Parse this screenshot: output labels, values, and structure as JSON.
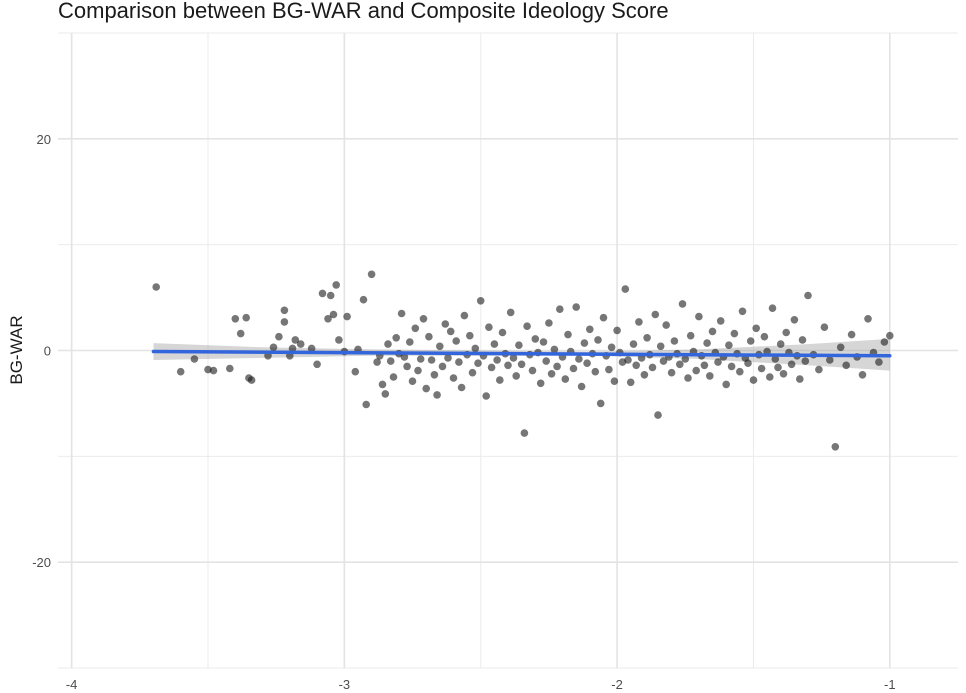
{
  "chart_data": {
    "type": "scatter",
    "title": "Comparison between BG-WAR and Composite Ideology Score",
    "xlabel": "",
    "ylabel": "BG-WAR",
    "xlim": [
      -4.05,
      -0.75
    ],
    "ylim": [
      -30,
      30
    ],
    "x_ticks": [
      -4,
      -3,
      -2,
      -1
    ],
    "x_tick_labels": [
      "-4",
      "-3",
      "-2",
      "-1"
    ],
    "y_ticks": [
      -20,
      0,
      20
    ],
    "y_tick_labels": [
      "-20",
      "0",
      "20"
    ],
    "grid": true,
    "point_color": "#1a1a1a",
    "trend_color": "#3366dd",
    "band_color": "#999999",
    "trend": {
      "x": [
        -3.7,
        -1.0
      ],
      "y": [
        -0.1,
        -0.5
      ]
    },
    "confidence_band": {
      "x": [
        -3.7,
        -3.3,
        -2.9,
        -2.5,
        -2.1,
        -1.7,
        -1.3,
        -1.0
      ],
      "upper": [
        0.7,
        0.3,
        0.1,
        0.0,
        -0.1,
        0.1,
        0.6,
        1.1
      ],
      "lower": [
        -0.9,
        -0.7,
        -0.5,
        -0.5,
        -0.5,
        -0.8,
        -1.4,
        -1.9
      ]
    },
    "points": [
      [
        -3.69,
        6.0
      ],
      [
        -3.6,
        -2.0
      ],
      [
        -3.55,
        -0.8
      ],
      [
        -3.5,
        -1.8
      ],
      [
        -3.48,
        -1.9
      ],
      [
        -3.42,
        -1.7
      ],
      [
        -3.4,
        3.0
      ],
      [
        -3.38,
        1.6
      ],
      [
        -3.36,
        3.1
      ],
      [
        -3.35,
        -2.6
      ],
      [
        -3.34,
        -2.8
      ],
      [
        -3.28,
        -0.5
      ],
      [
        -3.26,
        0.3
      ],
      [
        -3.24,
        1.3
      ],
      [
        -3.22,
        3.8
      ],
      [
        -3.22,
        2.7
      ],
      [
        -3.2,
        -0.5
      ],
      [
        -3.19,
        0.2
      ],
      [
        -3.18,
        1.0
      ],
      [
        -3.16,
        0.6
      ],
      [
        -3.12,
        0.2
      ],
      [
        -3.1,
        -1.3
      ],
      [
        -3.08,
        5.4
      ],
      [
        -3.06,
        3.0
      ],
      [
        -3.05,
        5.2
      ],
      [
        -3.04,
        3.4
      ],
      [
        -3.03,
        6.2
      ],
      [
        -3.02,
        1.0
      ],
      [
        -3.0,
        -0.1
      ],
      [
        -2.99,
        3.2
      ],
      [
        -2.96,
        -2.0
      ],
      [
        -2.95,
        0.1
      ],
      [
        -2.93,
        4.8
      ],
      [
        -2.92,
        -5.1
      ],
      [
        -2.9,
        7.2
      ],
      [
        -2.88,
        -1.1
      ],
      [
        -2.87,
        -0.5
      ],
      [
        -2.86,
        -3.2
      ],
      [
        -2.85,
        -4.1
      ],
      [
        -2.84,
        0.6
      ],
      [
        -2.83,
        -1.0
      ],
      [
        -2.82,
        -2.5
      ],
      [
        -2.81,
        1.2
      ],
      [
        -2.8,
        -0.3
      ],
      [
        -2.79,
        3.5
      ],
      [
        -2.78,
        -0.6
      ],
      [
        -2.77,
        -1.5
      ],
      [
        -2.76,
        0.8
      ],
      [
        -2.75,
        -2.9
      ],
      [
        -2.74,
        2.1
      ],
      [
        -2.73,
        -1.9
      ],
      [
        -2.72,
        -0.8
      ],
      [
        -2.71,
        3.0
      ],
      [
        -2.7,
        -3.6
      ],
      [
        -2.69,
        1.3
      ],
      [
        -2.68,
        -0.9
      ],
      [
        -2.67,
        -2.3
      ],
      [
        -2.66,
        -4.2
      ],
      [
        -2.65,
        0.4
      ],
      [
        -2.64,
        -1.5
      ],
      [
        -2.63,
        2.5
      ],
      [
        -2.62,
        -0.7
      ],
      [
        -2.61,
        1.8
      ],
      [
        -2.6,
        -2.6
      ],
      [
        -2.59,
        0.9
      ],
      [
        -2.58,
        -1.1
      ],
      [
        -2.57,
        -3.5
      ],
      [
        -2.56,
        3.3
      ],
      [
        -2.55,
        -0.4
      ],
      [
        -2.54,
        1.4
      ],
      [
        -2.53,
        -2.1
      ],
      [
        -2.52,
        0.2
      ],
      [
        -2.51,
        -1.2
      ],
      [
        -2.5,
        4.7
      ],
      [
        -2.49,
        -0.5
      ],
      [
        -2.48,
        -4.3
      ],
      [
        -2.47,
        2.2
      ],
      [
        -2.46,
        -1.6
      ],
      [
        -2.45,
        0.6
      ],
      [
        -2.44,
        -0.9
      ],
      [
        -2.43,
        -2.8
      ],
      [
        -2.42,
        1.7
      ],
      [
        -2.41,
        -0.3
      ],
      [
        -2.4,
        -1.4
      ],
      [
        -2.39,
        3.6
      ],
      [
        -2.38,
        -0.7
      ],
      [
        -2.37,
        -2.4
      ],
      [
        -2.36,
        0.5
      ],
      [
        -2.35,
        -1.3
      ],
      [
        -2.34,
        -7.8
      ],
      [
        -2.33,
        2.3
      ],
      [
        -2.32,
        -0.4
      ],
      [
        -2.31,
        -1.9
      ],
      [
        -2.3,
        1.1
      ],
      [
        -2.29,
        -0.2
      ],
      [
        -2.28,
        -3.1
      ],
      [
        -2.27,
        0.8
      ],
      [
        -2.26,
        -1.0
      ],
      [
        -2.25,
        2.6
      ],
      [
        -2.24,
        -2.2
      ],
      [
        -2.23,
        0.1
      ],
      [
        -2.22,
        -1.5
      ],
      [
        -2.21,
        3.9
      ],
      [
        -2.2,
        -0.6
      ],
      [
        -2.19,
        -2.7
      ],
      [
        -2.18,
        1.5
      ],
      [
        -2.17,
        -0.1
      ],
      [
        -2.16,
        -1.7
      ],
      [
        -2.15,
        4.1
      ],
      [
        -2.14,
        -0.8
      ],
      [
        -2.13,
        -3.4
      ],
      [
        -2.12,
        0.7
      ],
      [
        -2.11,
        -1.2
      ],
      [
        -2.1,
        2.0
      ],
      [
        -2.09,
        -0.3
      ],
      [
        -2.08,
        -2.0
      ],
      [
        -2.07,
        1.0
      ],
      [
        -2.06,
        -5.0
      ],
      [
        -2.05,
        3.1
      ],
      [
        -2.04,
        -0.5
      ],
      [
        -2.03,
        -1.8
      ],
      [
        -2.02,
        0.3
      ],
      [
        -2.01,
        -2.9
      ],
      [
        -2.0,
        1.9
      ],
      [
        -1.99,
        -0.2
      ],
      [
        -1.98,
        -1.1
      ],
      [
        -1.97,
        5.8
      ],
      [
        -1.96,
        -0.9
      ],
      [
        -1.95,
        -3.0
      ],
      [
        -1.94,
        0.6
      ],
      [
        -1.93,
        -1.4
      ],
      [
        -1.92,
        2.7
      ],
      [
        -1.91,
        -0.7
      ],
      [
        -1.9,
        -2.3
      ],
      [
        -1.89,
        1.2
      ],
      [
        -1.88,
        -0.4
      ],
      [
        -1.87,
        -1.6
      ],
      [
        -1.86,
        3.4
      ],
      [
        -1.85,
        -6.1
      ],
      [
        -1.84,
        0.4
      ],
      [
        -1.83,
        -1.0
      ],
      [
        -1.82,
        2.4
      ],
      [
        -1.81,
        -0.6
      ],
      [
        -1.8,
        -2.1
      ],
      [
        -1.79,
        0.9
      ],
      [
        -1.78,
        -0.3
      ],
      [
        -1.77,
        -1.3
      ],
      [
        -1.76,
        4.4
      ],
      [
        -1.75,
        -0.8
      ],
      [
        -1.74,
        -2.6
      ],
      [
        -1.73,
        1.4
      ],
      [
        -1.72,
        -0.1
      ],
      [
        -1.71,
        -1.9
      ],
      [
        -1.7,
        3.2
      ],
      [
        -1.69,
        -0.5
      ],
      [
        -1.68,
        -1.4
      ],
      [
        -1.67,
        0.7
      ],
      [
        -1.66,
        -2.4
      ],
      [
        -1.65,
        1.8
      ],
      [
        -1.64,
        -0.2
      ],
      [
        -1.63,
        -1.1
      ],
      [
        -1.62,
        2.8
      ],
      [
        -1.61,
        -0.6
      ],
      [
        -1.6,
        -3.2
      ],
      [
        -1.59,
        0.5
      ],
      [
        -1.58,
        -1.5
      ],
      [
        -1.57,
        1.6
      ],
      [
        -1.56,
        -0.3
      ],
      [
        -1.55,
        -2.0
      ],
      [
        -1.54,
        3.7
      ],
      [
        -1.53,
        -0.7
      ],
      [
        -1.52,
        -1.2
      ],
      [
        -1.51,
        0.9
      ],
      [
        -1.5,
        -2.8
      ],
      [
        -1.49,
        2.1
      ],
      [
        -1.48,
        -0.4
      ],
      [
        -1.47,
        -1.7
      ],
      [
        -1.46,
        1.3
      ],
      [
        -1.45,
        -0.1
      ],
      [
        -1.44,
        -2.5
      ],
      [
        -1.43,
        4.0
      ],
      [
        -1.42,
        -0.8
      ],
      [
        -1.41,
        -1.6
      ],
      [
        -1.4,
        0.6
      ],
      [
        -1.39,
        -2.2
      ],
      [
        -1.38,
        1.7
      ],
      [
        -1.37,
        -0.2
      ],
      [
        -1.36,
        -1.3
      ],
      [
        -1.35,
        2.9
      ],
      [
        -1.34,
        -0.5
      ],
      [
        -1.33,
        -2.7
      ],
      [
        -1.32,
        1.0
      ],
      [
        -1.31,
        -1.0
      ],
      [
        -1.3,
        5.2
      ],
      [
        -1.28,
        -0.4
      ],
      [
        -1.26,
        -1.8
      ],
      [
        -1.24,
        2.2
      ],
      [
        -1.22,
        -0.9
      ],
      [
        -1.2,
        -9.1
      ],
      [
        -1.18,
        0.3
      ],
      [
        -1.16,
        -1.4
      ],
      [
        -1.14,
        1.5
      ],
      [
        -1.12,
        -0.6
      ],
      [
        -1.1,
        -2.3
      ],
      [
        -1.08,
        3.0
      ],
      [
        -1.06,
        -0.2
      ],
      [
        -1.04,
        -1.1
      ],
      [
        -1.02,
        0.8
      ],
      [
        -1.0,
        1.4
      ]
    ]
  }
}
